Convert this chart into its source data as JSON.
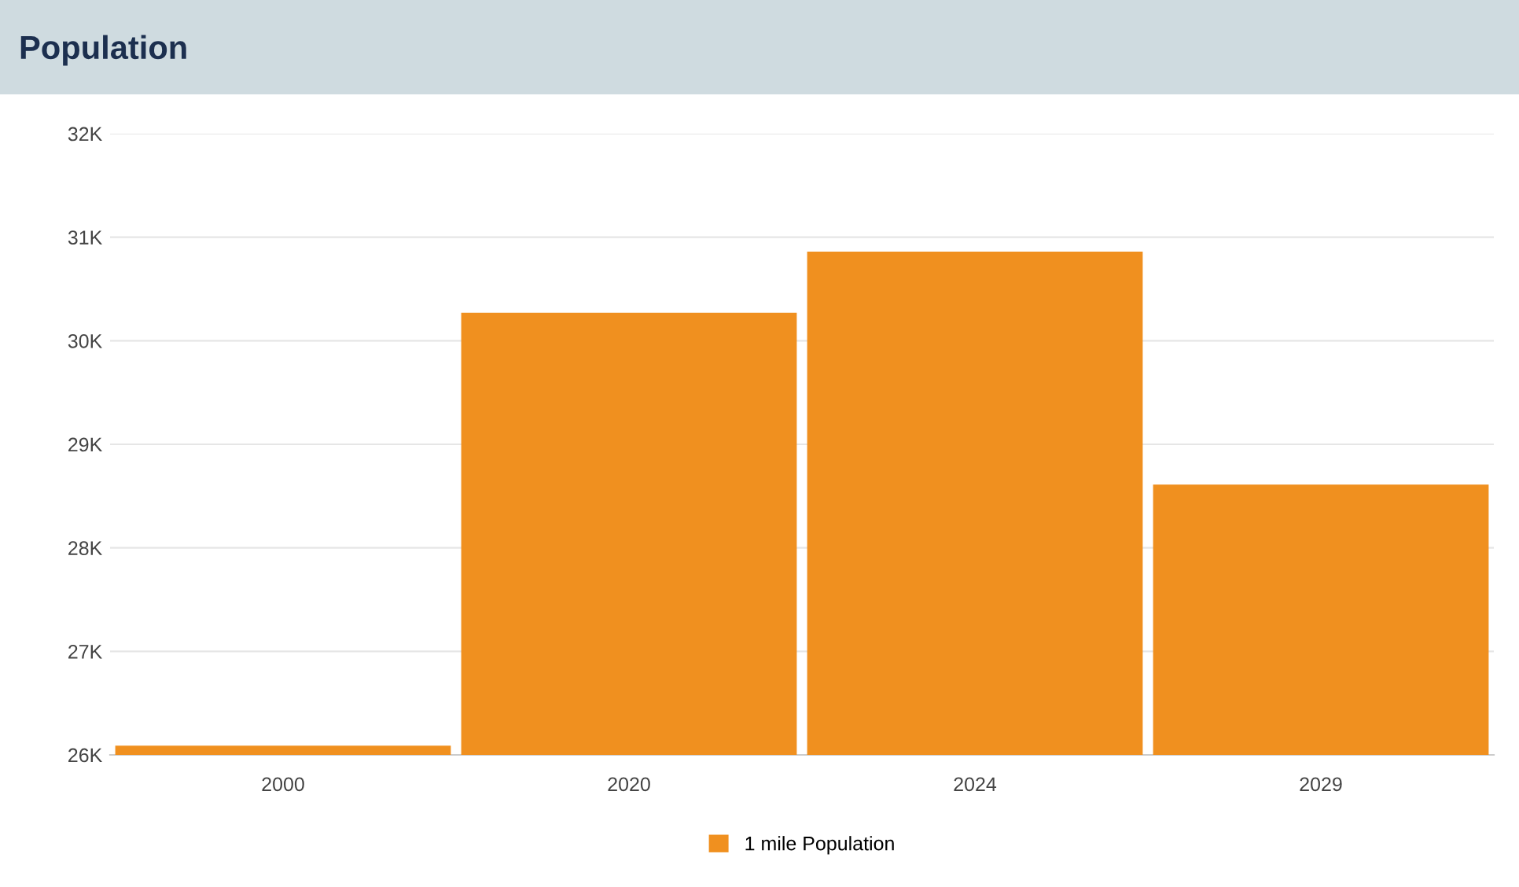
{
  "chart_data": {
    "type": "bar",
    "title": "Population",
    "categories": [
      "2000",
      "2020",
      "2024",
      "2029"
    ],
    "series": [
      {
        "name": "1 mile Population",
        "color": "#f0901f",
        "values": [
          26090,
          30270,
          30860,
          28610
        ]
      }
    ],
    "ylim": [
      26000,
      32000
    ],
    "yticks": [
      {
        "value": 26000,
        "label": "26K"
      },
      {
        "value": 27000,
        "label": "27K"
      },
      {
        "value": 28000,
        "label": "28K"
      },
      {
        "value": 29000,
        "label": "29K"
      },
      {
        "value": 30000,
        "label": "30K"
      },
      {
        "value": 31000,
        "label": "31K"
      },
      {
        "value": 32000,
        "label": "32K"
      }
    ],
    "grid": "y",
    "legend": "bottom"
  }
}
